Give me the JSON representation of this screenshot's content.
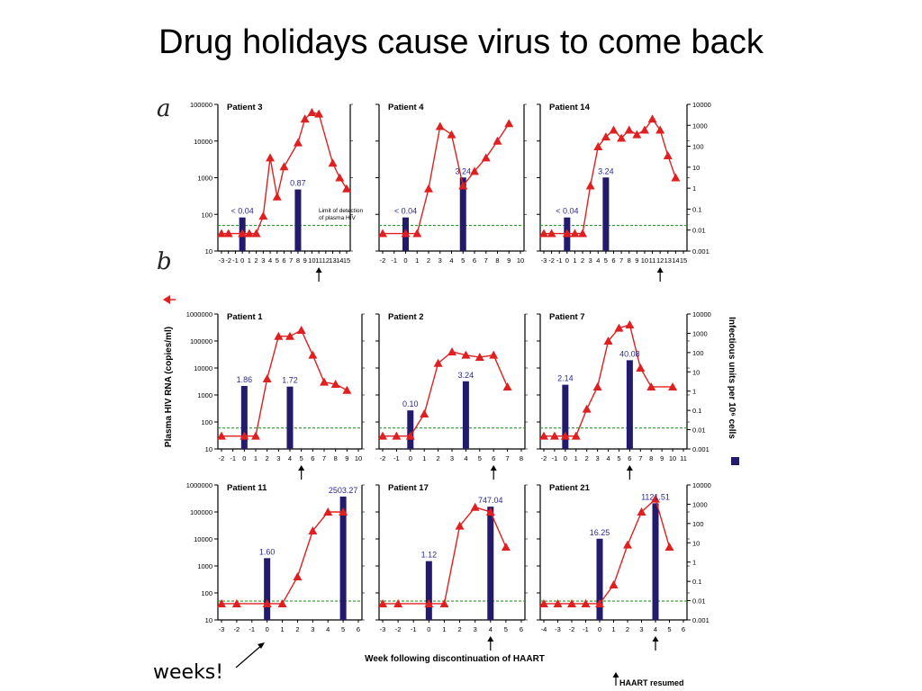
{
  "slide": {
    "title": "Drug holidays cause virus to come back",
    "weeks_note": "weeks!",
    "section_a": "a",
    "section_b": "b",
    "xlabel": "Week following discontinuation of HAART",
    "ylabel_left": "Plasma HIV RNA (copies/ml)",
    "ylabel_right": "Infectious units per 10⁶ cells",
    "haart_resumed_label": "HAART resumed",
    "limit_label_line1": "Limit of detection",
    "limit_label_line2": "of plasma HIV",
    "colors": {
      "line": "#e02020",
      "bar": "#221a6b",
      "limit": "#2a9a2a",
      "axis": "#000000"
    }
  },
  "chart_data": [
    {
      "type": "line+bar",
      "panel": "Patient 3",
      "section": "a",
      "yscale": "log",
      "ylim": [
        10,
        100000
      ],
      "y2lim": [
        0.001,
        10000
      ],
      "xticks": [
        "-3",
        "-2",
        "-1",
        "0",
        "1",
        "2",
        "3",
        "4",
        "5",
        "6",
        "7",
        "8",
        "9",
        "10",
        "11",
        "12",
        "13",
        "14",
        "15"
      ],
      "x": [
        -3,
        -2,
        0,
        1,
        2,
        3,
        4,
        5,
        6,
        8,
        9,
        10,
        11,
        13,
        14,
        15
      ],
      "y": [
        30,
        30,
        30,
        30,
        30,
        90,
        3500,
        300,
        2000,
        9000,
        40000,
        60000,
        55000,
        2500,
        1000,
        500
      ],
      "bars": [
        {
          "x": 0,
          "value": 0.04,
          "label": "< 0.04"
        },
        {
          "x": 8,
          "value": 0.87,
          "label": "0.87"
        }
      ],
      "limit": 50,
      "arrow_x": 11,
      "legend_text": true
    },
    {
      "type": "line+bar",
      "panel": "Patient 4",
      "section": "a",
      "yscale": "log",
      "ylim": [
        10,
        100000
      ],
      "y2lim": [
        0.001,
        10000
      ],
      "xticks": [
        "-2",
        "-1",
        "0",
        "1",
        "2",
        "3",
        "4",
        "5",
        "6",
        "7",
        "8",
        "9",
        "10"
      ],
      "x": [
        -2,
        0,
        1,
        2,
        3,
        4,
        5,
        6,
        7,
        8,
        9
      ],
      "y": [
        30,
        30,
        30,
        500,
        25000,
        15000,
        600,
        1500,
        3500,
        10000,
        30000
      ],
      "bars": [
        {
          "x": 0,
          "value": 0.04,
          "label": "< 0.04"
        },
        {
          "x": 5,
          "value": 3.24,
          "label": "3.24"
        }
      ],
      "limit": 50
    },
    {
      "type": "line+bar",
      "panel": "Patient 14",
      "section": "a",
      "yscale": "log",
      "ylim": [
        10,
        100000
      ],
      "y2lim": [
        0.001,
        10000
      ],
      "xticks": [
        "-3",
        "-2",
        "-1",
        "0",
        "1",
        "2",
        "3",
        "4",
        "5",
        "6",
        "7",
        "8",
        "9",
        "10",
        "11",
        "12",
        "13",
        "14",
        "15"
      ],
      "x": [
        -3,
        -2,
        0,
        1,
        2,
        3,
        4,
        5,
        6,
        7,
        8,
        9,
        10,
        11,
        12,
        13,
        14
      ],
      "y": [
        30,
        30,
        30,
        30,
        30,
        600,
        7000,
        13000,
        20000,
        12000,
        20000,
        15000,
        20000,
        40000,
        20000,
        4000,
        1000
      ],
      "bars": [
        {
          "x": 0,
          "value": 0.04,
          "label": "< 0.04"
        },
        {
          "x": 5,
          "value": 3.24,
          "label": "3.24"
        }
      ],
      "limit": 50,
      "arrow_x": 12
    },
    {
      "type": "line+bar",
      "panel": "Patient 1",
      "section": "b",
      "yscale": "log",
      "ylim": [
        10,
        1000000
      ],
      "y2lim": [
        0.001,
        10000
      ],
      "xticks": [
        "-2",
        "-1",
        "0",
        "1",
        "2",
        "3",
        "4",
        "5",
        "6",
        "7",
        "8",
        "9",
        "10"
      ],
      "x": [
        -2,
        0,
        1,
        2,
        3,
        4,
        5,
        6,
        7,
        8,
        9
      ],
      "y": [
        30,
        30,
        30,
        4000,
        150000,
        150000,
        250000,
        30000,
        3000,
        2500,
        1500
      ],
      "bars": [
        {
          "x": 0,
          "value": 1.86,
          "label": "1.86"
        },
        {
          "x": 4,
          "value": 1.72,
          "label": "1.72"
        }
      ],
      "limit": 60,
      "arrow_x": 5
    },
    {
      "type": "line+bar",
      "panel": "Patient 2",
      "section": "b",
      "yscale": "log",
      "ylim": [
        10,
        1000000
      ],
      "y2lim": [
        0.001,
        10000
      ],
      "xticks": [
        "-2",
        "-1",
        "0",
        "1",
        "2",
        "3",
        "4",
        "5",
        "6",
        "7",
        "8"
      ],
      "x": [
        -2,
        -1,
        0,
        1,
        2,
        3,
        4,
        5,
        6,
        7
      ],
      "y": [
        30,
        30,
        30,
        200,
        15000,
        40000,
        30000,
        25000,
        30000,
        2000
      ],
      "bars": [
        {
          "x": 0,
          "value": 0.1,
          "label": "0.10"
        },
        {
          "x": 4,
          "value": 3.24,
          "label": "3.24"
        }
      ],
      "limit": 60,
      "arrow_x": 6
    },
    {
      "type": "line+bar",
      "panel": "Patient 7",
      "section": "b",
      "yscale": "log",
      "ylim": [
        10,
        1000000
      ],
      "y2lim": [
        0.001,
        10000
      ],
      "xticks": [
        "-2",
        "-1",
        "0",
        "1",
        "2",
        "3",
        "4",
        "5",
        "6",
        "7",
        "8",
        "9",
        "10",
        "11"
      ],
      "x": [
        -2,
        -1,
        0,
        1,
        2,
        3,
        4,
        5,
        6,
        7,
        8,
        10
      ],
      "y": [
        30,
        30,
        30,
        30,
        300,
        2000,
        100000,
        300000,
        400000,
        10000,
        2000,
        2000
      ],
      "bars": [
        {
          "x": 0,
          "value": 2.14,
          "label": "2.14"
        },
        {
          "x": 6,
          "value": 40.08,
          "label": "40.08"
        }
      ],
      "limit": 60,
      "arrow_x": 6
    },
    {
      "type": "line+bar",
      "panel": "Patient 11",
      "section": "b",
      "yscale": "log",
      "ylim": [
        10,
        1000000
      ],
      "y2lim": [
        0.001,
        10000
      ],
      "xticks": [
        "-3",
        "-2",
        "-1",
        "0",
        "1",
        "2",
        "3",
        "4",
        "5",
        "6"
      ],
      "x": [
        -3,
        -2,
        0,
        1,
        2,
        3,
        4,
        5
      ],
      "y": [
        40,
        40,
        40,
        40,
        400,
        20000,
        100000,
        100000
      ],
      "bars": [
        {
          "x": 0,
          "value": 1.6,
          "label": "1.60"
        },
        {
          "x": 5,
          "value": 2503.27,
          "label": "2503.27"
        }
      ],
      "limit": 50
    },
    {
      "type": "line+bar",
      "panel": "Patient 17",
      "section": "b",
      "yscale": "log",
      "ylim": [
        10,
        1000000
      ],
      "y2lim": [
        0.001,
        10000
      ],
      "xticks": [
        "-3",
        "-2",
        "-1",
        "0",
        "1",
        "2",
        "3",
        "4",
        "5",
        "6"
      ],
      "x": [
        -3,
        -2,
        0,
        1,
        2,
        3,
        4,
        5
      ],
      "y": [
        40,
        40,
        40,
        40,
        30000,
        150000,
        100000,
        5000
      ],
      "bars": [
        {
          "x": 0,
          "value": 1.12,
          "label": "1.12"
        },
        {
          "x": 4,
          "value": 747.04,
          "label": "747.04"
        }
      ],
      "limit": 50,
      "arrow_x": 4
    },
    {
      "type": "line+bar",
      "panel": "Patient 21",
      "section": "b",
      "yscale": "log",
      "ylim": [
        10,
        1000000
      ],
      "y2lim": [
        0.001,
        10000
      ],
      "xticks": [
        "-4",
        "-3",
        "-2",
        "-1",
        "0",
        "1",
        "2",
        "3",
        "4",
        "5",
        "6"
      ],
      "x": [
        -4,
        -3,
        -2,
        -1,
        0,
        1,
        2,
        3,
        4,
        5
      ],
      "y": [
        40,
        40,
        40,
        40,
        40,
        200,
        6000,
        100000,
        300000,
        5000
      ],
      "bars": [
        {
          "x": 0,
          "value": 16.25,
          "label": "16.25"
        },
        {
          "x": 4,
          "value": 1121.51,
          "label": "1121.51"
        }
      ],
      "limit": 50,
      "arrow_x": 4
    }
  ]
}
